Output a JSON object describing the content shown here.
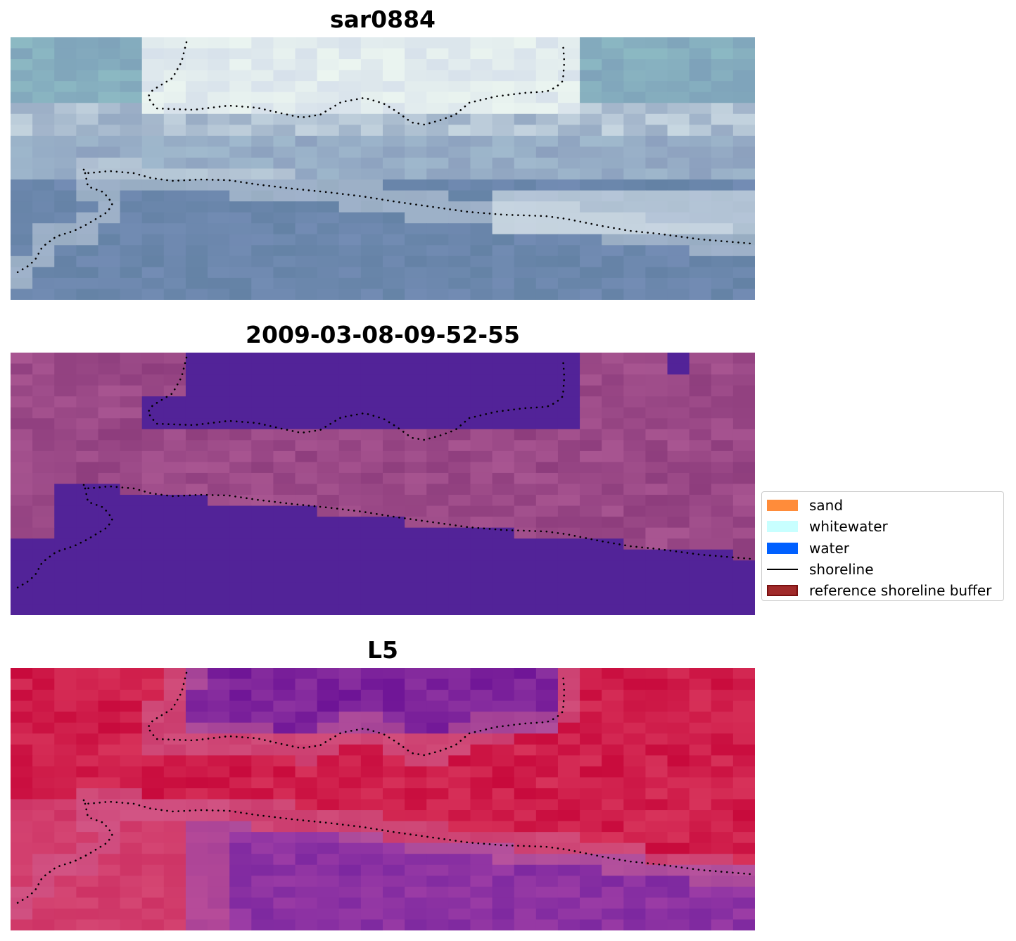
{
  "panels": [
    {
      "title": "sar0884",
      "style": "sar"
    },
    {
      "title": "2009-03-08-09-52-55",
      "style": "classified"
    },
    {
      "title": "L5",
      "style": "index"
    }
  ],
  "legend": {
    "items": [
      {
        "label": "sand",
        "color": "#ff8c3a",
        "kind": "patch"
      },
      {
        "label": "whitewater",
        "color": "#c8ffff",
        "kind": "patch"
      },
      {
        "label": "water",
        "color": "#0060ff",
        "kind": "patch"
      },
      {
        "label": "shoreline",
        "color": "#000000",
        "kind": "line"
      },
      {
        "label": "reference shoreline buffer",
        "color": "#a02a2a",
        "edge": "#7a1010",
        "kind": "patch"
      }
    ]
  }
}
